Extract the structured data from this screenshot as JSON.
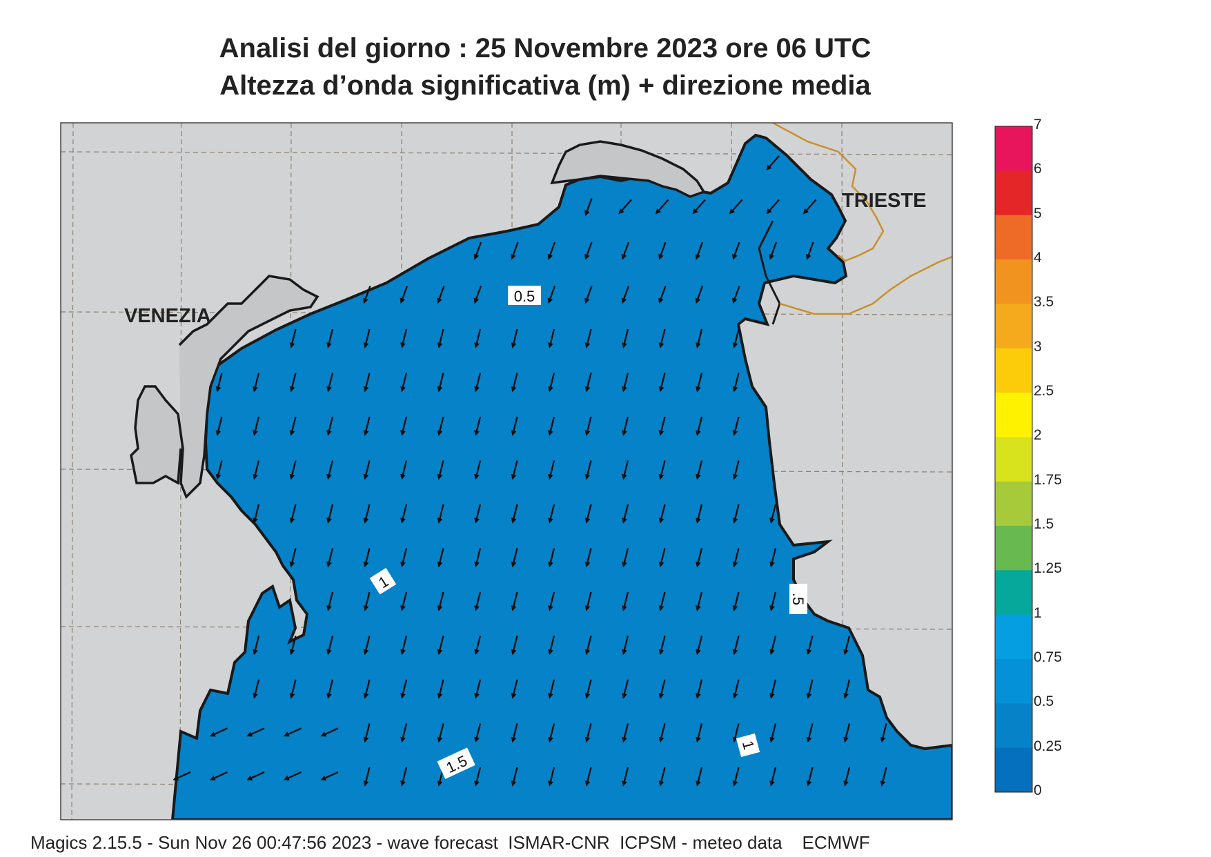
{
  "title_line1": "Analisi del giorno :  25 Novembre  2023    ore 06 UTC",
  "title_line2": "Altezza d’onda significativa (m) + direzione media",
  "places": [
    {
      "name": "VENEZIA"
    },
    {
      "name": "TRIESTE"
    }
  ],
  "contour_labels": [
    "0.5",
    "1",
    "1.5",
    ".5",
    "1"
  ],
  "colorbar": {
    "ticks": [
      "7",
      "6",
      "5",
      "4",
      "3.5",
      "3",
      "2.5",
      "2",
      "1.75",
      "1.5",
      "1.25",
      "1",
      "0.75",
      "0.5",
      "0.25",
      "0"
    ],
    "colors": [
      "#e8155d",
      "#e42628",
      "#ed6a27",
      "#f0931f",
      "#f5aa1d",
      "#fccc0a",
      "#fff200",
      "#d8e21d",
      "#a6ca3a",
      "#68b950",
      "#05a89b",
      "#049ee1",
      "#0591d7",
      "#0682c8",
      "#0570bd"
    ]
  },
  "colors": {
    "land": "#d2d3d5",
    "border": "#c8902a",
    "coast": "#1a1a1a"
  },
  "footer": "Magics 2.15.5 - Sun Nov 26 00:47:56 2023 - wave forecast  ISMAR-CNR  ICPSM - meteo data    ECMWF"
}
